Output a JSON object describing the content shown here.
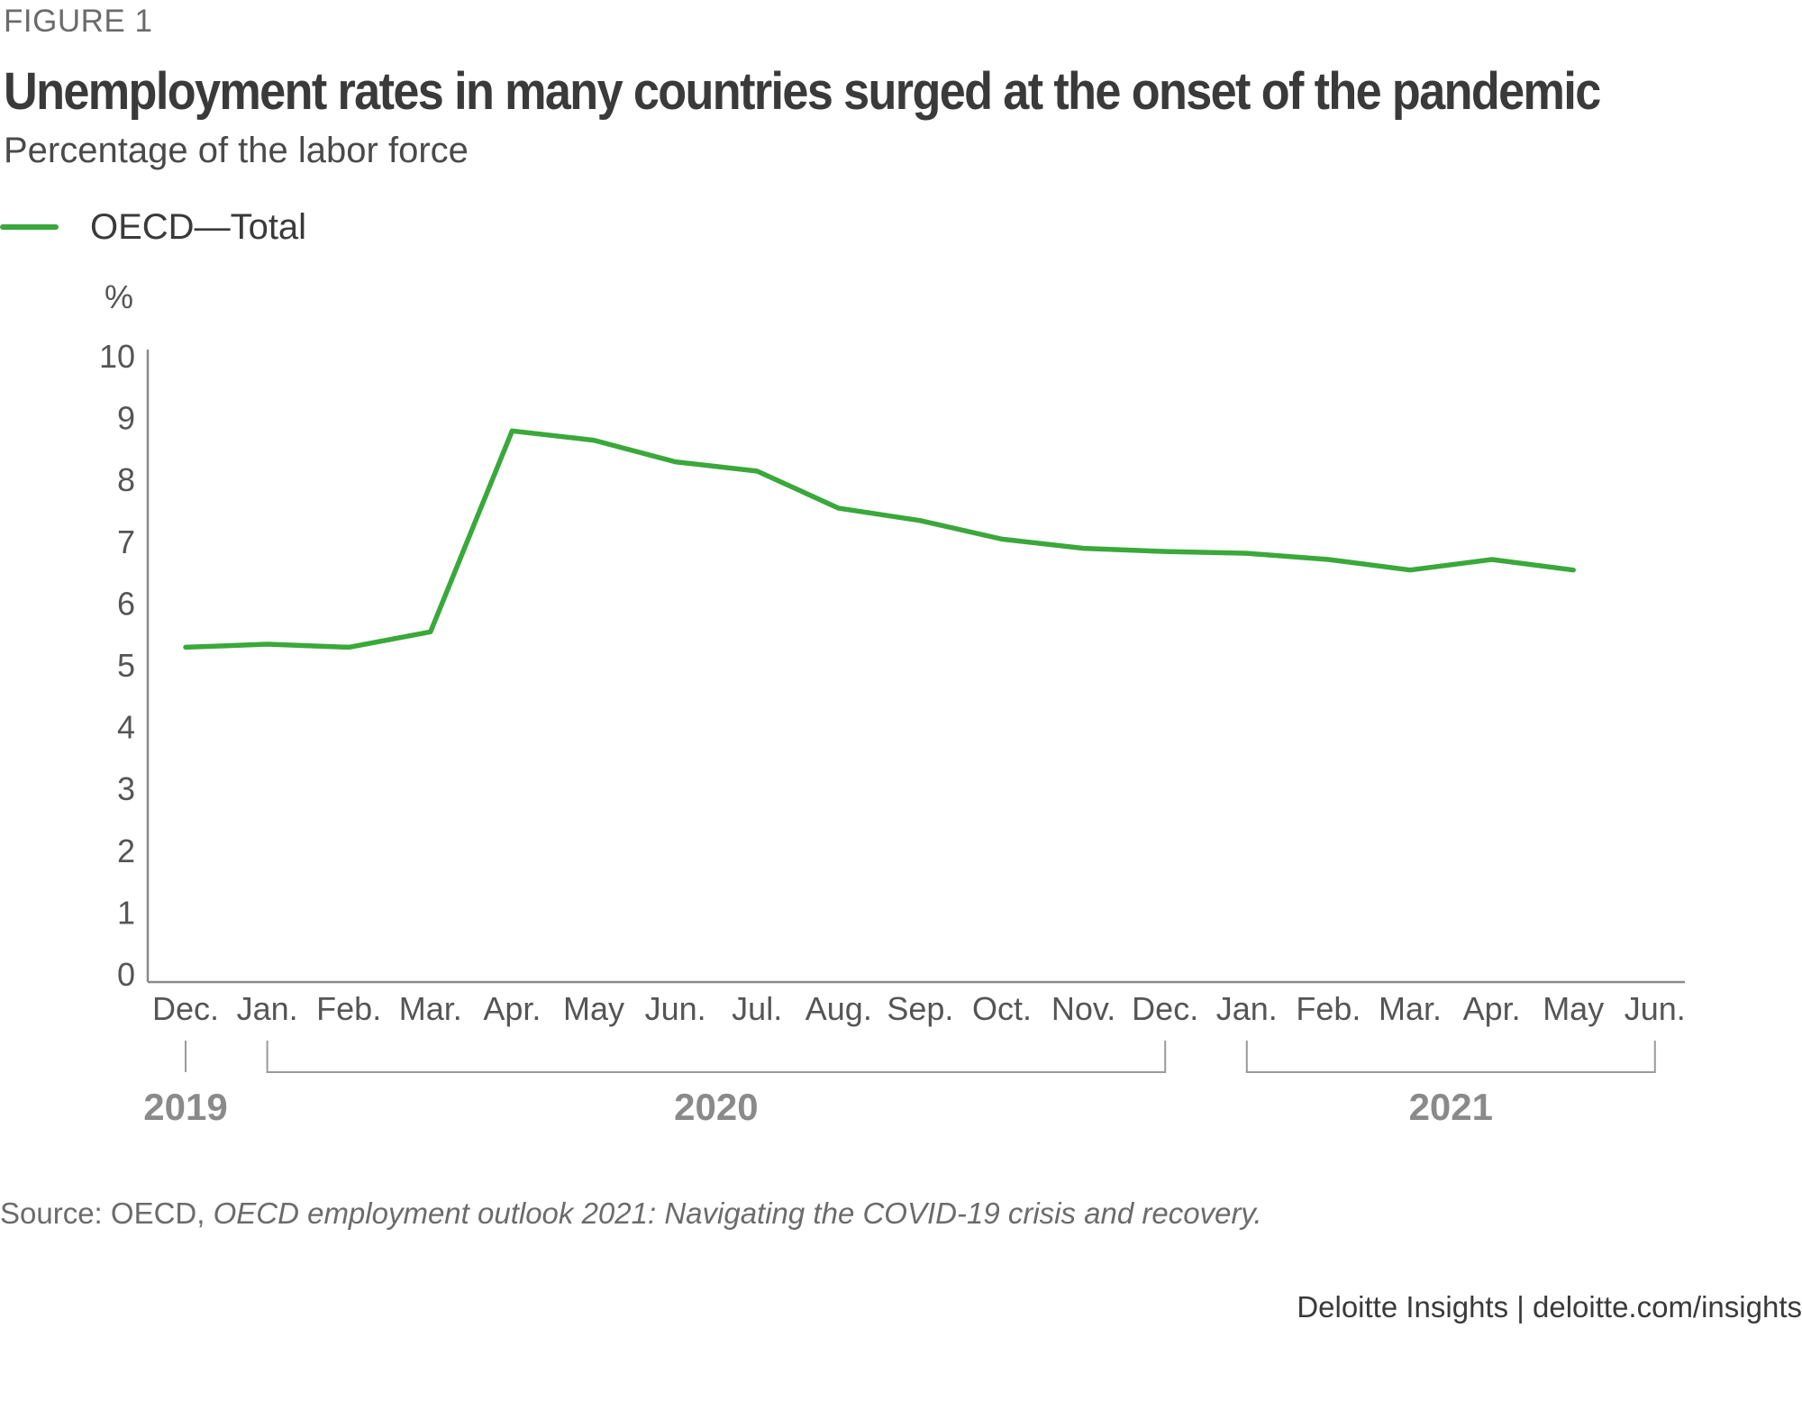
{
  "figure_label": "FIGURE 1",
  "title": "Unemployment rates in many countries surged at the onset of the pandemic",
  "subtitle": "Percentage of the labor force",
  "chart_data": {
    "type": "line",
    "title": "Unemployment rates in many countries surged at the onset of the pandemic",
    "subtitle": "Percentage of the labor force",
    "ylabel": "%",
    "ylim": [
      0,
      10
    ],
    "yticks": [
      0,
      1,
      2,
      3,
      4,
      5,
      6,
      7,
      8,
      9,
      10
    ],
    "categories": [
      "Dec.",
      "Jan.",
      "Feb.",
      "Mar.",
      "Apr.",
      "May",
      "Jun.",
      "Jul.",
      "Aug.",
      "Sep.",
      "Oct.",
      "Nov.",
      "Dec.",
      "Jan.",
      "Feb.",
      "Mar.",
      "Apr.",
      "May",
      "Jun."
    ],
    "year_groups": [
      {
        "label": "2019",
        "from": 0,
        "to": 0
      },
      {
        "label": "2020",
        "from": 1,
        "to": 12
      },
      {
        "label": "2021",
        "from": 13,
        "to": 18
      }
    ],
    "series": [
      {
        "name": "OECD—Total",
        "color": "#3aa83a",
        "values": [
          5.3,
          5.35,
          5.3,
          5.55,
          8.8,
          8.65,
          8.3,
          8.15,
          7.55,
          7.35,
          7.05,
          6.9,
          6.85,
          6.82,
          6.72,
          6.55,
          6.72,
          6.55,
          null
        ]
      }
    ],
    "grid": false,
    "legend": "top-left"
  },
  "source_prefix": "Source: OECD, ",
  "source_title": "OECD employment outlook 2021: Navigating the COVID-19 crisis and recovery.",
  "credit": "Deloitte Insights | deloitte.com/insights"
}
